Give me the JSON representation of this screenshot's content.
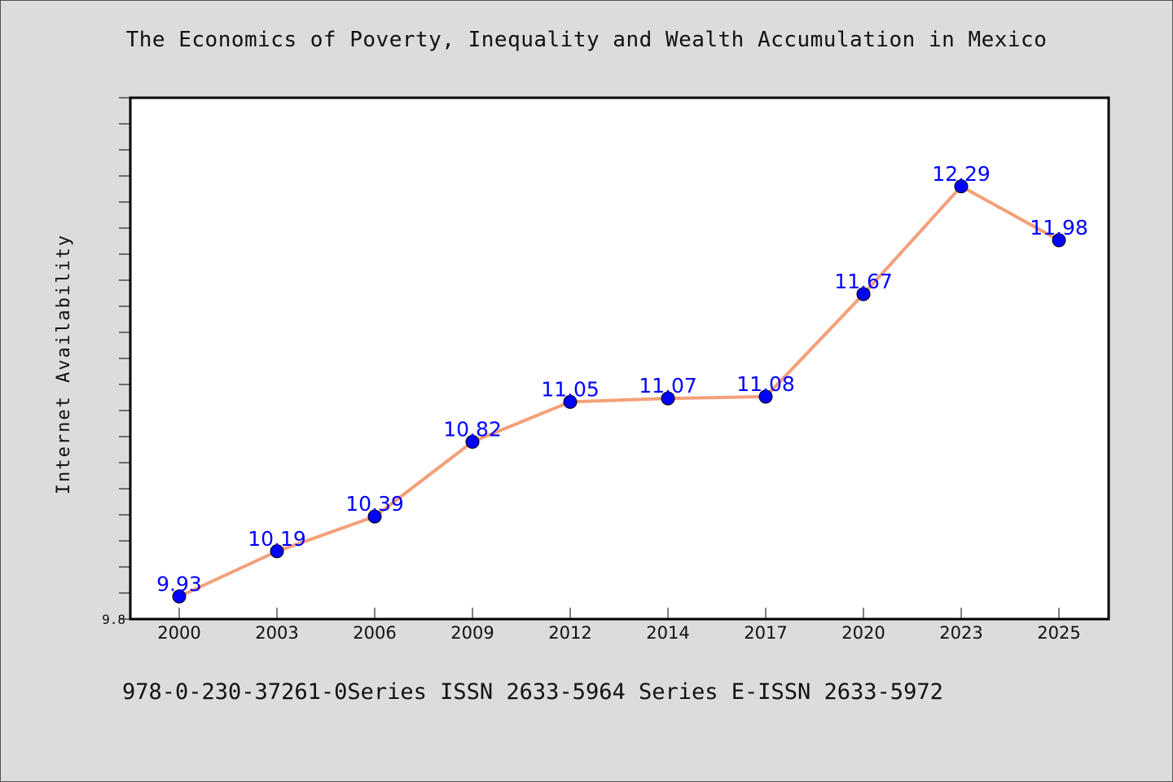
{
  "chart_data": {
    "type": "line",
    "title": "The Economics of Poverty, Inequality and Wealth Accumulation in Mexico",
    "xlabel": "",
    "ylabel": "Internet Availability",
    "categories": [
      "2000",
      "2003",
      "2006",
      "2009",
      "2012",
      "2014",
      "2017",
      "2020",
      "2023",
      "2025"
    ],
    "series": [
      {
        "values": [
          9.93,
          10.19,
          10.39,
          10.82,
          11.05,
          11.07,
          11.08,
          11.67,
          12.29,
          11.98
        ],
        "data_labels": [
          "9.93",
          "10.19",
          "10.39",
          "10.82",
          "11.05",
          "11.07",
          "11.08",
          "11.67",
          "12.29",
          "11.98"
        ]
      }
    ],
    "ylim": [
      9.8,
      12.8
    ],
    "y_tick_labels": [
      "9.8"
    ],
    "grid": false,
    "legend": "none",
    "colors": {
      "line": "#f4a07a",
      "marker": "#0000ff",
      "data_label": "#0000ff",
      "background": "#dcdcdc",
      "plot_background": "#ffffff"
    }
  },
  "footer": "978-0-230-37261-0Series ISSN 2633-5964 Series E-ISSN 2633-5972"
}
